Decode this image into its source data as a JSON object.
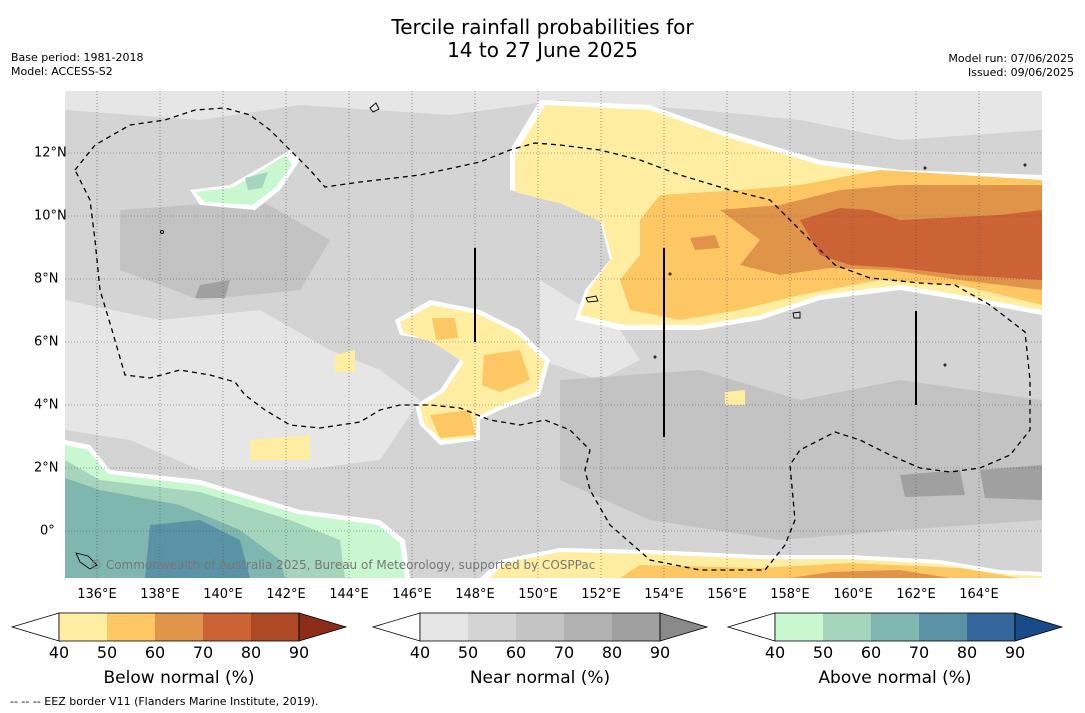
{
  "header": {
    "title_line1": "Tercile rainfall probabilities for",
    "title_line2": "14 to 27 June 2025",
    "base_period": "Base period: 1981-2018",
    "model": "Model: ACCESS-S2",
    "model_run": "Model run: 07/06/2025",
    "issued": "Issued: 09/06/2025"
  },
  "map": {
    "lon_labels": [
      "136°E",
      "138°E",
      "140°E",
      "142°E",
      "144°E",
      "146°E",
      "148°E",
      "150°E",
      "152°E",
      "154°E",
      "156°E",
      "158°E",
      "160°E",
      "162°E",
      "164°E"
    ],
    "lat_labels": [
      "12°N",
      "10°N",
      "8°N",
      "6°N",
      "4°N",
      "2°N",
      "0°"
    ],
    "credit": "© Commonwealth of Australia 2025, Bureau of Meteorology, supported by COSPPac"
  },
  "colorbars": [
    {
      "label": "Below normal (%)",
      "ticks": [
        "40",
        "50",
        "60",
        "70",
        "80",
        "90"
      ],
      "colors": [
        "#ffeea1",
        "#fdc863",
        "#e0944a",
        "#cc6335",
        "#ad4a26",
        "#8c2d1a"
      ]
    },
    {
      "label": "Near normal (%)",
      "ticks": [
        "40",
        "50",
        "60",
        "70",
        "80",
        "90"
      ],
      "colors": [
        "#e6e6e6",
        "#d4d4d4",
        "#c3c3c3",
        "#b1b1b1",
        "#a0a0a0",
        "#8a8a8a"
      ]
    },
    {
      "label": "Above normal (%)",
      "ticks": [
        "40",
        "50",
        "60",
        "70",
        "80",
        "90"
      ],
      "colors": [
        "#c9f7cf",
        "#a5d6bd",
        "#80b6b0",
        "#5a93a5",
        "#34679b",
        "#1a4a87"
      ]
    }
  ],
  "footnote": "--  --  -- EEZ border V11 (Flanders Marine Institute, 2019)."
}
